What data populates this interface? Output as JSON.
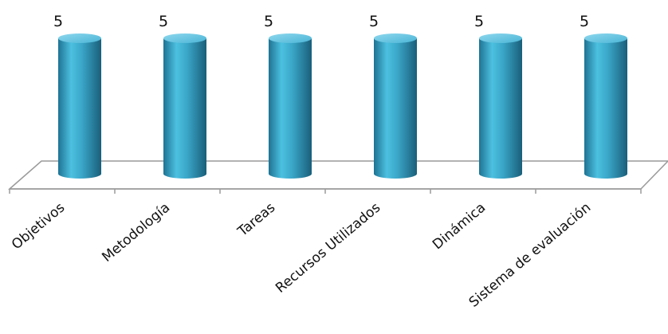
{
  "chart_data": {
    "type": "bar",
    "style": "3d-cylinder",
    "categories": [
      "Objetivos",
      "Metodología",
      "Tareas",
      "Recursos Utilizados",
      "Dinámica",
      "Sistema de evaluación"
    ],
    "values": [
      5,
      5,
      5,
      5,
      5,
      5
    ],
    "data_labels": [
      "5",
      "5",
      "5",
      "5",
      "5",
      "5"
    ],
    "title": "",
    "xlabel": "",
    "ylabel": "",
    "ylim": [
      0,
      5
    ],
    "grid": false,
    "legend": "none",
    "colors": {
      "bar": "#3aa6c8",
      "bar_dark": "#1f6f8c",
      "bar_light": "#8fd8ee",
      "floor": "#ffffff",
      "axis": "#9a9a9a"
    }
  }
}
